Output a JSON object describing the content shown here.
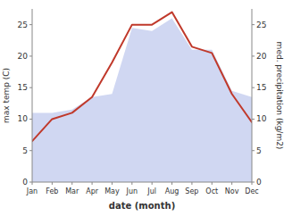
{
  "chart_data": {
    "type": "line",
    "xlabel": "date (month)",
    "ylabel": "max temp (C)",
    "y2label": "med. precipitation (kg/m2)",
    "categories": [
      "Jan",
      "Feb",
      "Mar",
      "Apr",
      "May",
      "Jun",
      "Jul",
      "Aug",
      "Sep",
      "Oct",
      "Nov",
      "Dec"
    ],
    "series": [
      {
        "type": "area",
        "axis": "y2",
        "color": "#c8d0f0",
        "values": [
          11.0,
          11.0,
          11.5,
          13.5,
          14.0,
          24.5,
          24.0,
          26.0,
          21.0,
          21.0,
          14.5,
          13.5
        ]
      },
      {
        "type": "line",
        "color": "#c0392b",
        "values": [
          6.5,
          10.0,
          11.0,
          13.5,
          19.0,
          25.0,
          25.0,
          27.0,
          21.5,
          20.5,
          14.0,
          9.5
        ]
      }
    ],
    "ylim": [
      0,
      27.5
    ],
    "yticks": [
      0,
      5,
      10,
      15,
      20,
      25
    ],
    "y2lim": [
      0,
      27.5
    ],
    "y2ticks": [
      0,
      5,
      10,
      15,
      20,
      25
    ],
    "grid": false
  }
}
